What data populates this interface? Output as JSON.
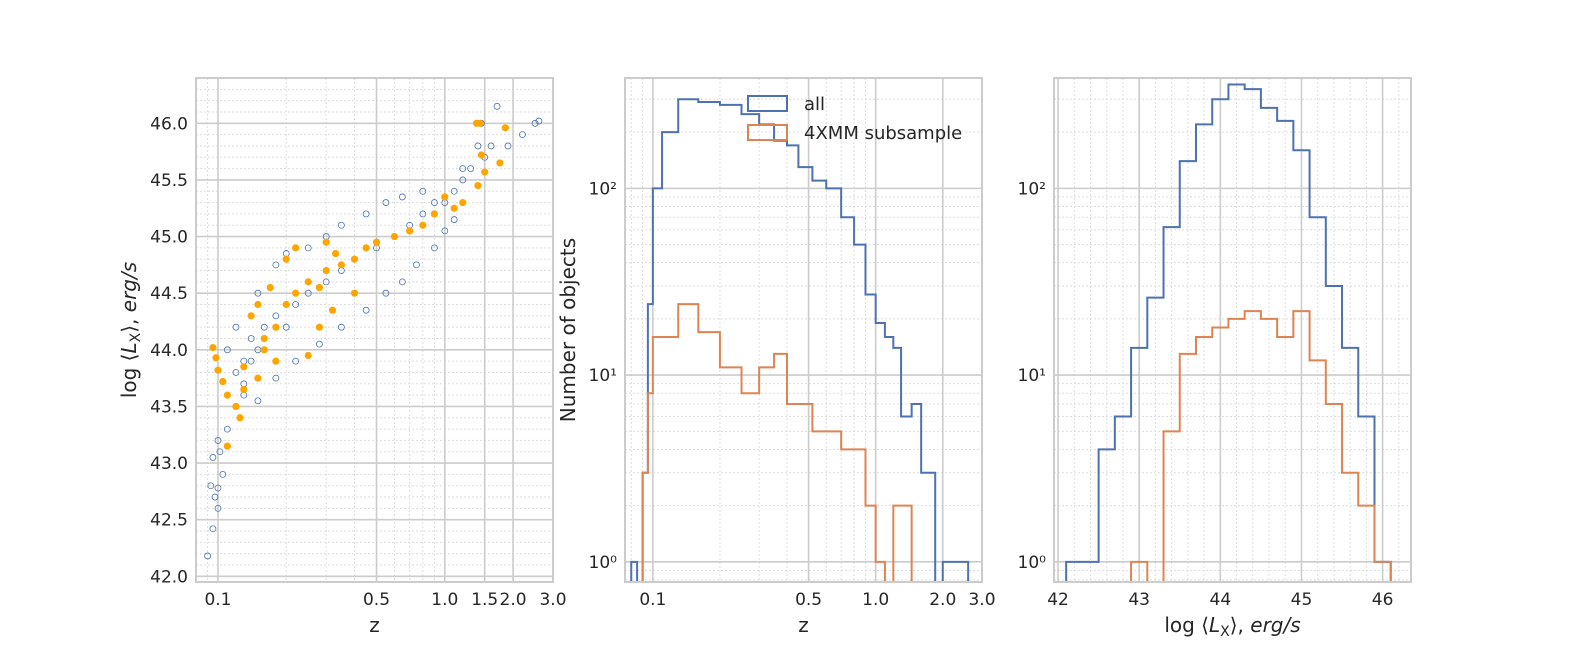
{
  "colors": {
    "all": "#4c72b0",
    "subsample": "#dd8452",
    "highlight": "#ffa500",
    "grid": "#cccccc",
    "minor_grid": "#dddddd",
    "frame": "#cccccc"
  },
  "chart_data": [
    {
      "type": "scatter",
      "xlabel": "z",
      "ylabel": "log ⟨L_X⟩, erg/s",
      "xscale": "log",
      "xlim": [
        0.08,
        3.0
      ],
      "ylim": [
        41.95,
        46.4
      ],
      "xticks": [
        0.1,
        0.5,
        1.0,
        1.5,
        2.0,
        3.0
      ],
      "xtick_labels": [
        "0.1",
        "0.5",
        "1.0",
        "1.5",
        "2.0",
        "3.0"
      ],
      "yticks": [
        42.0,
        42.5,
        43.0,
        43.5,
        44.0,
        44.5,
        45.0,
        45.5,
        46.0
      ],
      "ytick_labels": [
        "42.0",
        "42.5",
        "43.0",
        "43.5",
        "44.0",
        "44.5",
        "45.0",
        "45.5",
        "46.0"
      ],
      "grid": true,
      "series": [
        {
          "marker": "open-circle",
          "points": [
            [
              0.09,
              42.18
            ],
            [
              0.095,
              42.42
            ],
            [
              0.093,
              42.8
            ],
            [
              0.097,
              42.7
            ],
            [
              0.1,
              42.78
            ],
            [
              0.095,
              43.05
            ],
            [
              0.1,
              43.2
            ],
            [
              0.11,
              43.3
            ],
            [
              0.1,
              42.6
            ],
            [
              0.105,
              42.9
            ],
            [
              0.102,
              43.1
            ],
            [
              0.12,
              43.5
            ],
            [
              0.13,
              43.7
            ],
            [
              0.14,
              43.9
            ],
            [
              0.15,
              44.0
            ],
            [
              0.16,
              44.2
            ],
            [
              0.12,
              43.8
            ],
            [
              0.13,
              43.9
            ],
            [
              0.14,
              44.1
            ],
            [
              0.18,
              44.3
            ],
            [
              0.2,
              44.2
            ],
            [
              0.22,
              44.4
            ],
            [
              0.25,
              44.5
            ],
            [
              0.3,
              44.6
            ],
            [
              0.35,
              44.7
            ],
            [
              0.4,
              44.8
            ],
            [
              0.5,
              44.9
            ],
            [
              0.6,
              45.0
            ],
            [
              0.7,
              45.1
            ],
            [
              0.8,
              45.2
            ],
            [
              0.9,
              45.3
            ],
            [
              1.0,
              45.3
            ],
            [
              1.1,
              45.4
            ],
            [
              1.2,
              45.5
            ],
            [
              1.3,
              45.6
            ],
            [
              1.5,
              45.7
            ],
            [
              1.6,
              45.8
            ],
            [
              1.9,
              45.8
            ],
            [
              2.2,
              45.9
            ],
            [
              2.5,
              46.0
            ],
            [
              2.6,
              46.02
            ],
            [
              1.7,
              46.15
            ],
            [
              1.45,
              46.0
            ],
            [
              0.25,
              44.9
            ],
            [
              0.3,
              45.0
            ],
            [
              0.35,
              45.1
            ],
            [
              0.45,
              45.2
            ],
            [
              0.55,
              45.3
            ],
            [
              0.65,
              45.35
            ],
            [
              0.8,
              45.4
            ],
            [
              1.2,
              45.6
            ],
            [
              1.4,
              45.8
            ],
            [
              0.18,
              44.75
            ],
            [
              0.2,
              44.85
            ],
            [
              0.15,
              44.5
            ],
            [
              0.12,
              44.2
            ],
            [
              0.11,
              44.0
            ],
            [
              0.13,
              43.6
            ],
            [
              0.15,
              43.55
            ],
            [
              0.18,
              43.75
            ],
            [
              0.22,
              43.9
            ],
            [
              0.28,
              44.05
            ],
            [
              0.35,
              44.2
            ],
            [
              0.45,
              44.35
            ],
            [
              0.55,
              44.5
            ],
            [
              0.65,
              44.6
            ],
            [
              0.75,
              44.75
            ],
            [
              0.9,
              44.9
            ],
            [
              1.0,
              45.05
            ],
            [
              1.1,
              45.15
            ]
          ]
        },
        {
          "marker": "filled-circle",
          "points": [
            [
              0.095,
              44.02
            ],
            [
              0.098,
              43.93
            ],
            [
              0.1,
              43.82
            ],
            [
              0.105,
              43.72
            ],
            [
              0.11,
              43.6
            ],
            [
              0.12,
              43.5
            ],
            [
              0.125,
              43.4
            ],
            [
              0.13,
              43.65
            ],
            [
              0.11,
              43.15
            ],
            [
              0.13,
              43.85
            ],
            [
              0.14,
              44.3
            ],
            [
              0.15,
              44.4
            ],
            [
              0.16,
              44.1
            ],
            [
              0.17,
              44.55
            ],
            [
              0.16,
              44.0
            ],
            [
              0.18,
              44.2
            ],
            [
              0.2,
              44.4
            ],
            [
              0.22,
              44.5
            ],
            [
              0.25,
              44.6
            ],
            [
              0.28,
              44.55
            ],
            [
              0.3,
              44.7
            ],
            [
              0.35,
              44.75
            ],
            [
              0.4,
              44.8
            ],
            [
              0.45,
              44.9
            ],
            [
              0.5,
              44.95
            ],
            [
              0.6,
              45.0
            ],
            [
              0.7,
              45.05
            ],
            [
              0.8,
              45.1
            ],
            [
              0.9,
              45.2
            ],
            [
              1.0,
              45.35
            ],
            [
              1.1,
              45.25
            ],
            [
              1.2,
              45.3
            ],
            [
              0.2,
              44.8
            ],
            [
              0.22,
              44.9
            ],
            [
              0.3,
              44.95
            ],
            [
              0.33,
              44.85
            ],
            [
              1.38,
              46.0
            ],
            [
              1.43,
              46.0
            ],
            [
              1.85,
              45.96
            ],
            [
              1.75,
              45.65
            ],
            [
              1.45,
              45.72
            ],
            [
              1.5,
              45.57
            ],
            [
              1.4,
              45.45
            ],
            [
              0.25,
              43.95
            ],
            [
              0.28,
              44.2
            ],
            [
              0.32,
              44.35
            ],
            [
              0.4,
              44.5
            ],
            [
              0.15,
              43.75
            ],
            [
              0.18,
              43.9
            ]
          ]
        }
      ]
    },
    {
      "type": "histogram",
      "xlabel": "z",
      "ylabel": "Number of objects",
      "xscale": "log",
      "yscale": "log",
      "xlim": [
        0.075,
        3.0
      ],
      "ylim": [
        0.78,
        390
      ],
      "xticks": [
        0.1,
        0.5,
        1.0,
        2.0,
        3.0
      ],
      "xtick_labels": [
        "0.1",
        "0.5",
        "1.0",
        "2.0",
        "3.0"
      ],
      "yticks": [
        1,
        10,
        100
      ],
      "ytick_labels": [
        "10⁰",
        "10¹",
        "10²"
      ],
      "legend_position": "top-center",
      "grid": true,
      "series": [
        {
          "name": "all",
          "bin_edges": [
            0.08,
            0.085,
            0.09,
            0.095,
            0.1,
            0.11,
            0.13,
            0.16,
            0.2,
            0.25,
            0.3,
            0.35,
            0.4,
            0.45,
            0.52,
            0.6,
            0.7,
            0.8,
            0.9,
            1.0,
            1.1,
            1.2,
            1.3,
            1.45,
            1.6,
            1.85,
            2.0,
            2.2,
            2.6
          ],
          "counts": [
            1,
            0,
            3,
            24,
            100,
            200,
            300,
            290,
            280,
            250,
            220,
            180,
            170,
            130,
            110,
            100,
            70,
            50,
            27,
            19,
            16,
            14,
            6,
            7,
            3,
            0,
            1,
            1
          ]
        },
        {
          "name": "4XMM subsample",
          "bin_edges": [
            0.08,
            0.085,
            0.09,
            0.095,
            0.1,
            0.11,
            0.13,
            0.16,
            0.2,
            0.25,
            0.3,
            0.35,
            0.4,
            0.45,
            0.52,
            0.6,
            0.7,
            0.8,
            0.9,
            1.0,
            1.1,
            1.2,
            1.3,
            1.45,
            1.6,
            1.85,
            2.0,
            2.2,
            2.6
          ],
          "counts": [
            0,
            0,
            3,
            8,
            16,
            16,
            24,
            17,
            11,
            8,
            11,
            13,
            7,
            7,
            5,
            5,
            4,
            4,
            2,
            1,
            0,
            2,
            2,
            0,
            0,
            0,
            0,
            0
          ]
        }
      ]
    },
    {
      "type": "histogram",
      "xlabel": "log ⟨L_X⟩, erg/s",
      "ylabel": "",
      "yscale": "log",
      "xlim": [
        41.95,
        46.35
      ],
      "ylim": [
        0.78,
        390
      ],
      "xticks": [
        42,
        43,
        44,
        45,
        46
      ],
      "xtick_labels": [
        "42",
        "43",
        "44",
        "45",
        "46"
      ],
      "yticks": [
        1,
        10,
        100
      ],
      "ytick_labels": [
        "10⁰",
        "10¹",
        "10²"
      ],
      "grid": true,
      "series": [
        {
          "name": "all",
          "bin_edges": [
            42.1,
            42.3,
            42.5,
            42.7,
            42.9,
            43.1,
            43.3,
            43.5,
            43.7,
            43.9,
            44.1,
            44.3,
            44.5,
            44.7,
            44.9,
            45.1,
            45.3,
            45.5,
            45.7,
            45.9,
            46.1
          ],
          "counts": [
            1,
            1,
            4,
            6,
            14,
            26,
            62,
            140,
            220,
            300,
            360,
            340,
            270,
            230,
            160,
            70,
            30,
            14,
            6,
            1
          ]
        },
        {
          "name": "4XMM subsample",
          "bin_edges": [
            42.1,
            42.3,
            42.5,
            42.7,
            42.9,
            43.1,
            43.3,
            43.5,
            43.7,
            43.9,
            44.1,
            44.3,
            44.5,
            44.7,
            44.9,
            45.1,
            45.3,
            45.5,
            45.7,
            45.9,
            46.1
          ],
          "counts": [
            0,
            0,
            0,
            0,
            1,
            0,
            5,
            13,
            16,
            18,
            20,
            22,
            20,
            16,
            22,
            12,
            7,
            3,
            2,
            1
          ]
        }
      ]
    }
  ]
}
